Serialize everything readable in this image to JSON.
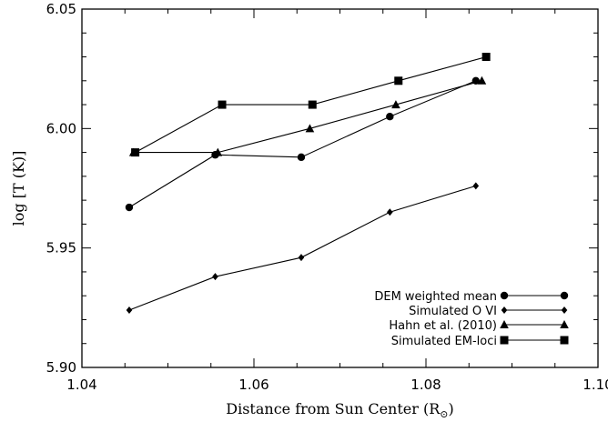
{
  "chart_data": {
    "type": "line",
    "xlabel": "Distance from Sun Center (R",
    "xlabel_sub": "⊙",
    "xlabel_close": ")",
    "ylabel": "log [T (K)]",
    "xlim": [
      1.04,
      1.1
    ],
    "ylim": [
      5.9,
      6.05
    ],
    "xticks": [
      1.04,
      1.06,
      1.08,
      1.1
    ],
    "xtick_labels": [
      "1.04",
      "1.06",
      "1.08",
      "1.10"
    ],
    "yticks": [
      5.9,
      5.95,
      6.0,
      6.05
    ],
    "ytick_labels": [
      "5.90",
      "5.95",
      "6.00",
      "6.05"
    ],
    "legend_position": "bottom-right",
    "series": [
      {
        "name": "DEM weighted mean",
        "marker": "circle",
        "x": [
          1.0455,
          1.0555,
          1.0655,
          1.0758,
          1.0858
        ],
        "y": [
          5.967,
          5.989,
          5.988,
          6.005,
          6.02
        ]
      },
      {
        "name": "Simulated O VI",
        "marker": "diamond",
        "x": [
          1.0455,
          1.0555,
          1.0655,
          1.0758,
          1.0858
        ],
        "y": [
          5.924,
          5.938,
          5.946,
          5.965,
          5.976
        ]
      },
      {
        "name": "Hahn et al. (2010)",
        "marker": "triangle",
        "x": [
          1.046,
          1.0558,
          1.0665,
          1.0765,
          1.0865
        ],
        "y": [
          5.99,
          5.99,
          6.0,
          6.01,
          6.02
        ]
      },
      {
        "name": "Simulated EM-loci",
        "marker": "square",
        "x": [
          1.0462,
          1.0563,
          1.0668,
          1.0768,
          1.087
        ],
        "y": [
          5.99,
          6.01,
          6.01,
          6.02,
          6.03
        ]
      }
    ]
  }
}
